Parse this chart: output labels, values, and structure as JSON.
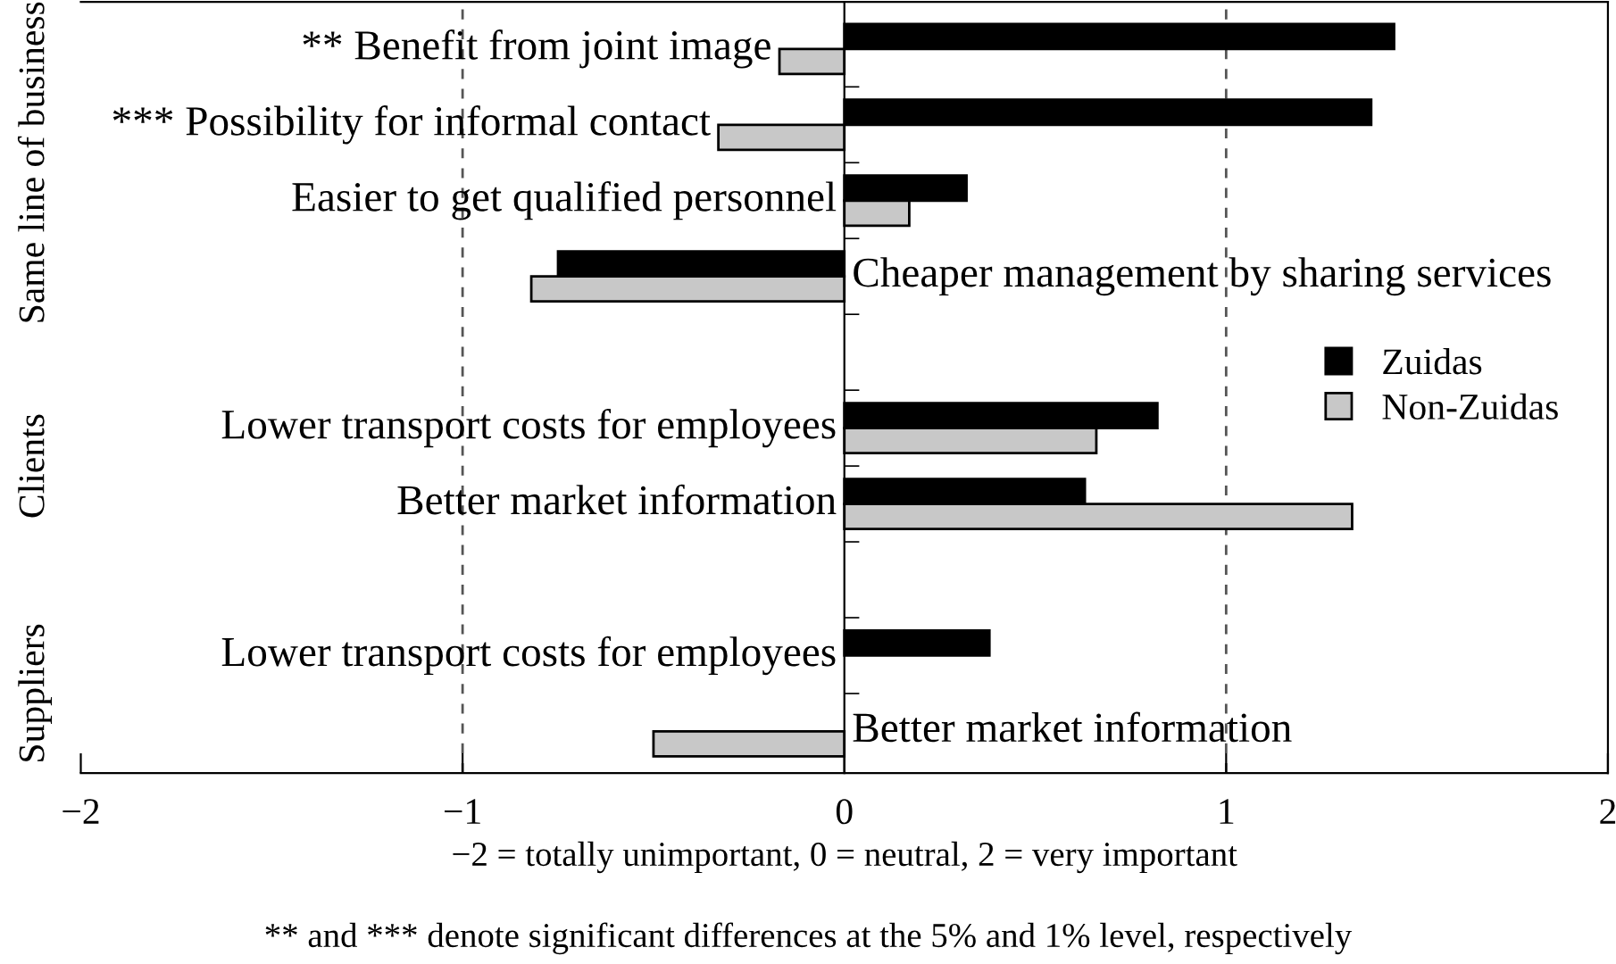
{
  "chart_data": {
    "type": "bar",
    "orientation": "horizontal",
    "categories": [
      "** Benefit from joint image",
      "*** Possibility for informal contact",
      "Easier to get qualified personnel",
      "Cheaper management by sharing services",
      null,
      "Lower transport costs for employees",
      "Better market information",
      null,
      "Lower transport costs for employees",
      "Better market information"
    ],
    "series": [
      {
        "name": "Zuidas",
        "color": "#000000",
        "values": [
          1.44,
          1.38,
          0.32,
          -0.75,
          null,
          0.82,
          0.63,
          null,
          0.38,
          null
        ]
      },
      {
        "name": "Non-Zuidas",
        "color": "#c8c8c8",
        "values": [
          -0.17,
          -0.33,
          0.17,
          -0.82,
          null,
          0.66,
          1.33,
          null,
          null,
          -0.5
        ]
      }
    ],
    "xlim": [
      -2,
      2
    ],
    "xticks": [
      {
        "value": -2,
        "label": "−2"
      },
      {
        "value": -1,
        "label": "−1"
      },
      0,
      1,
      2
    ],
    "ref_lines": [
      {
        "axis": "x",
        "value": -1,
        "line_style": "dashed",
        "color": "#555555"
      },
      {
        "axis": "x",
        "value": 1,
        "line_style": "dashed",
        "color": "#555555"
      }
    ],
    "xlabel": "−2 = totally unimportant, 0 = neutral, 2 = very important",
    "annotations": [
      "Same line of business",
      "Clients",
      "Suppliers",
      "** and *** denote significant differences at the 5% and 1% level, respectively"
    ],
    "legend": "right",
    "grid": false
  }
}
